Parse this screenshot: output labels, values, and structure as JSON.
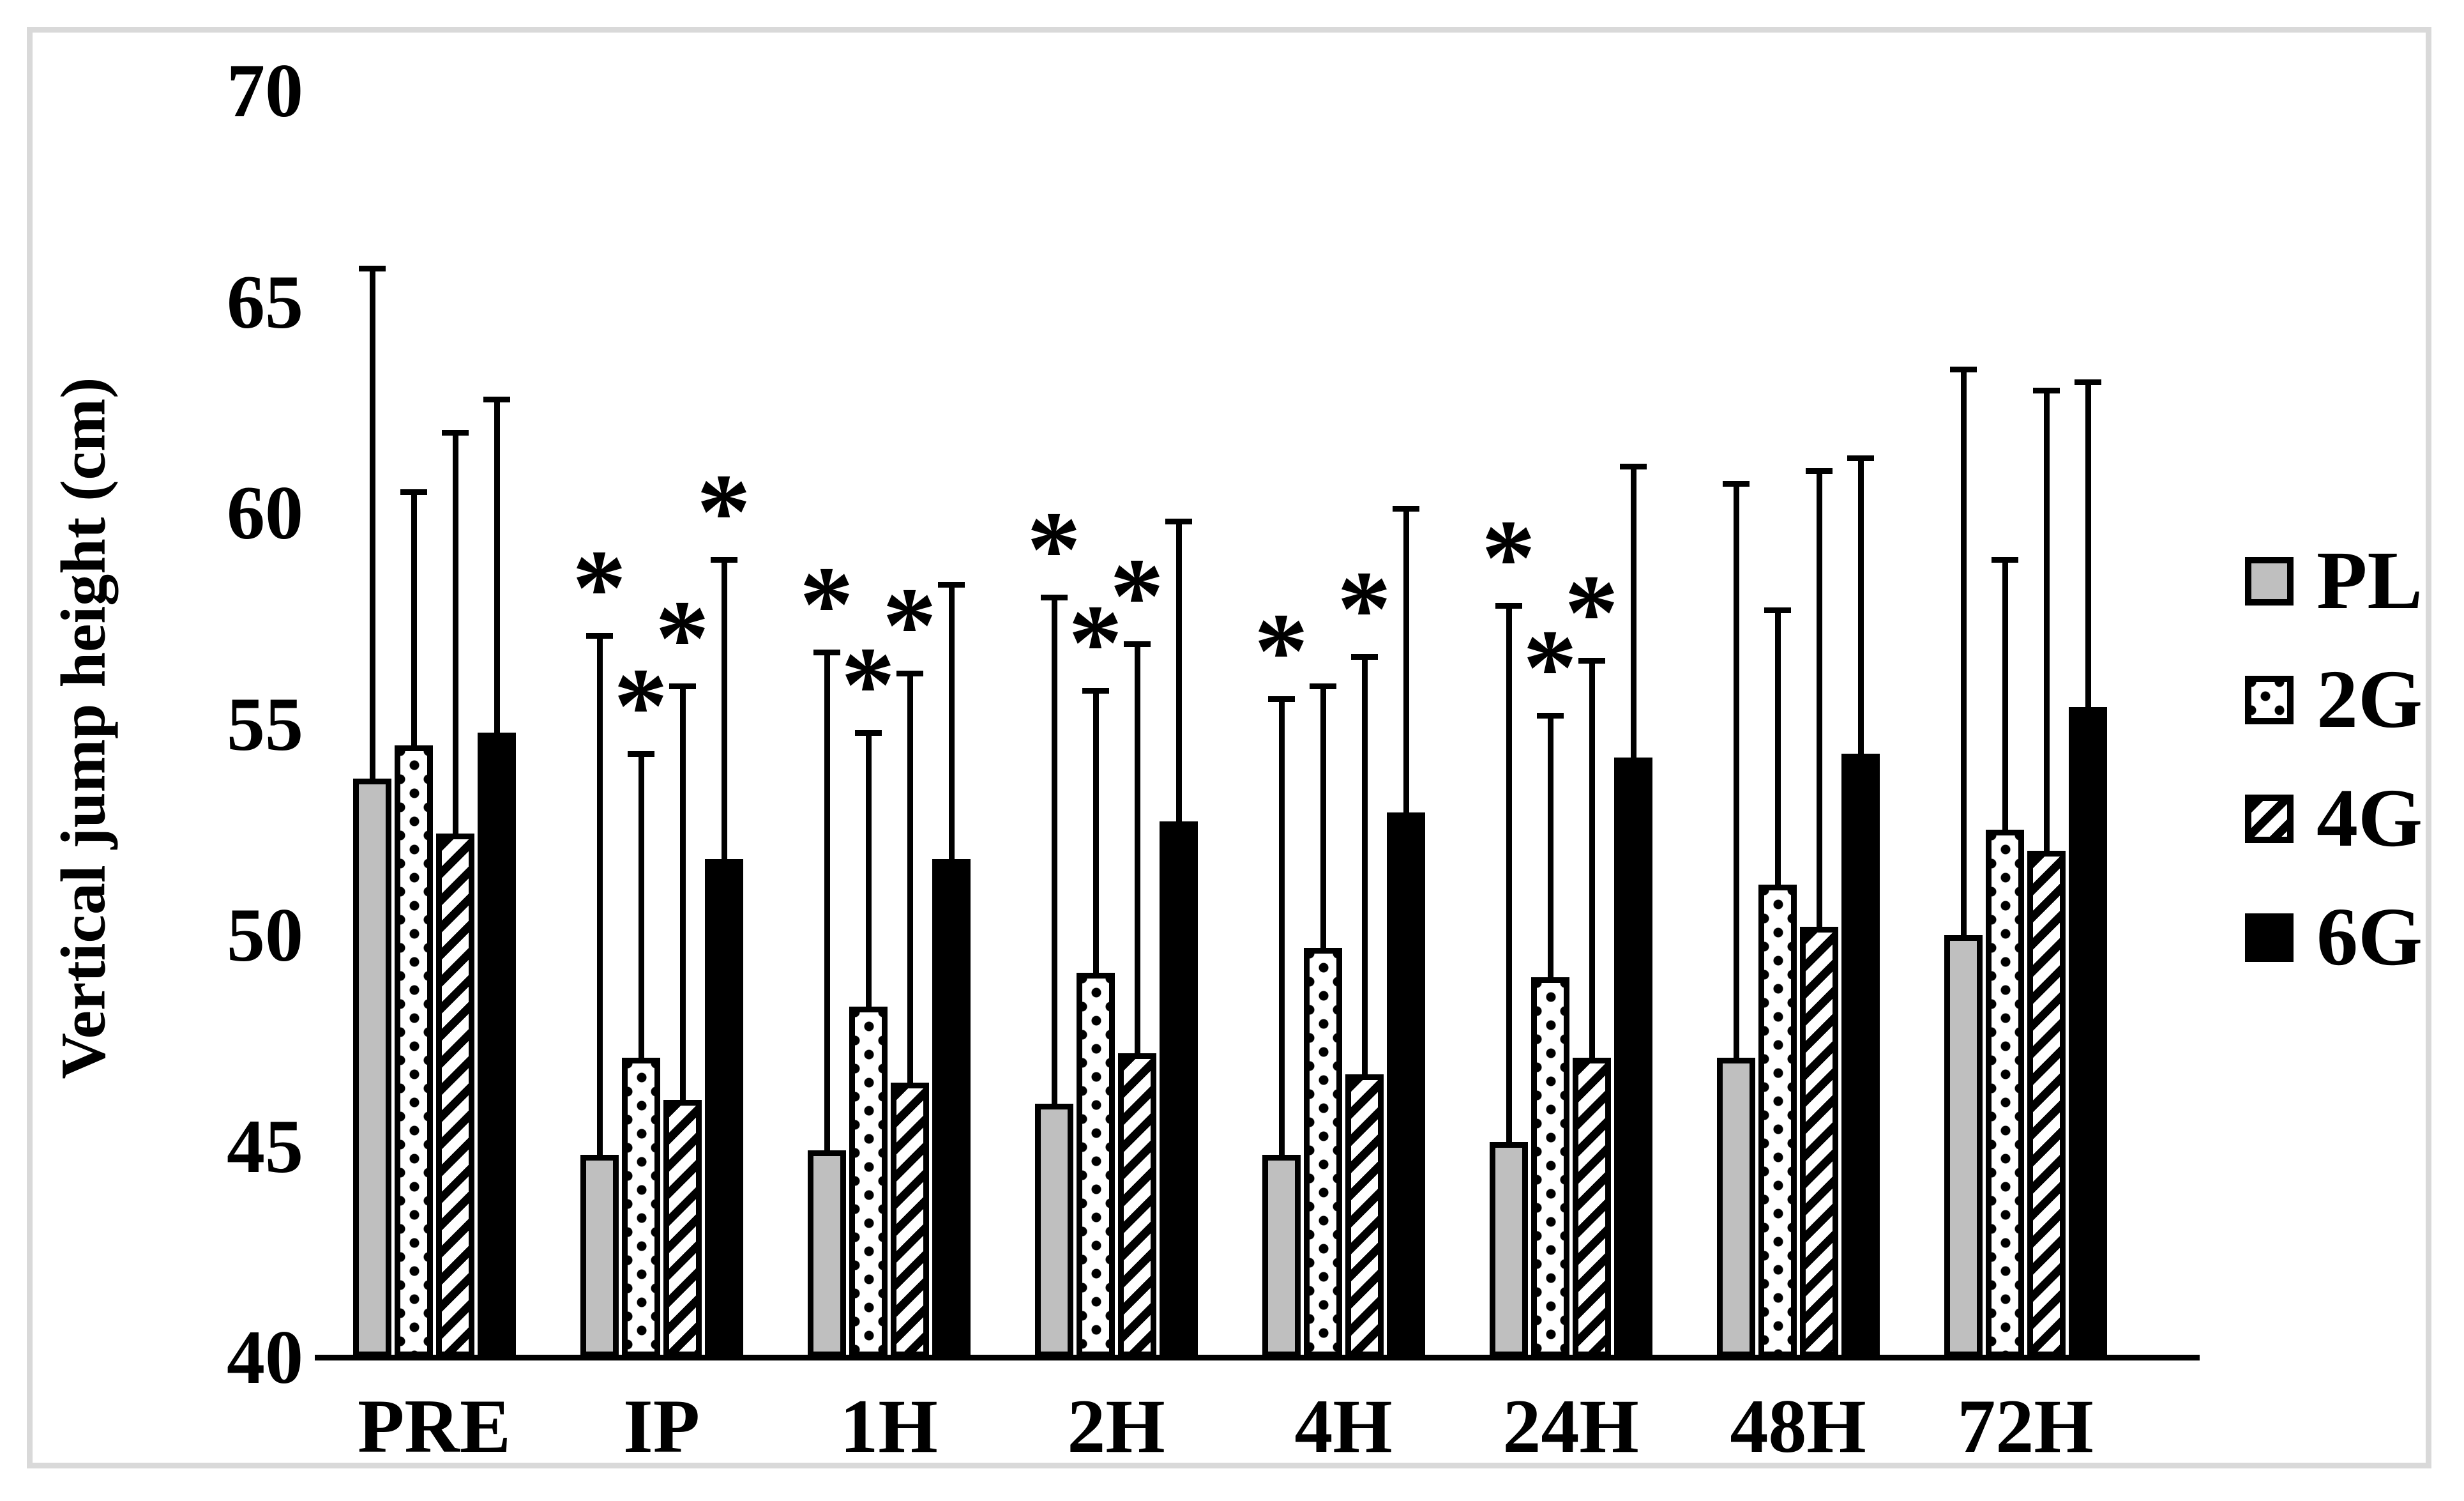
{
  "figure": {
    "background_color": "#ffffff",
    "border_color": "#d9d9d9",
    "bar_border_color": "#000000",
    "gray_fill": "#bfbfbf"
  },
  "chart_data": {
    "type": "bar",
    "title": "",
    "xlabel": "",
    "ylabel": "Vertical jump height (cm)",
    "ylim": [
      40,
      70
    ],
    "yticks": [
      40,
      45,
      50,
      55,
      60,
      65,
      70
    ],
    "grid": "off",
    "legend_position": "right",
    "sig_marker": "*",
    "error_bars": "upper only, cap style",
    "categories": [
      "PRE",
      "IP",
      "1H",
      "2H",
      "4H",
      "24H",
      "48H",
      "72H"
    ],
    "series": [
      {
        "name": "PL",
        "pattern": "solid-gray",
        "fill": "#bfbfbf",
        "values": [
          53.7,
          44.8,
          44.9,
          46.0,
          44.8,
          45.1,
          47.1,
          50.0
        ],
        "error_up": [
          12.1,
          12.3,
          11.8,
          12.0,
          10.8,
          12.7,
          13.6,
          13.4
        ],
        "significant": [
          false,
          true,
          true,
          true,
          true,
          true,
          false,
          false
        ]
      },
      {
        "name": "2G",
        "pattern": "dotted",
        "fill": "#ffffff",
        "values": [
          54.5,
          47.1,
          48.3,
          49.1,
          49.7,
          49.0,
          51.2,
          52.5
        ],
        "error_up": [
          6.0,
          7.2,
          6.5,
          6.7,
          6.2,
          6.2,
          6.5,
          6.4
        ],
        "significant": [
          false,
          true,
          true,
          true,
          false,
          true,
          false,
          false
        ]
      },
      {
        "name": "4G",
        "pattern": "diagonal-stripes",
        "fill": "#ffffff",
        "values": [
          52.4,
          46.1,
          46.5,
          47.2,
          46.7,
          47.1,
          50.2,
          52.0
        ],
        "error_up": [
          9.5,
          9.8,
          9.7,
          9.7,
          9.9,
          9.4,
          10.8,
          10.9
        ],
        "significant": [
          false,
          true,
          true,
          true,
          true,
          true,
          false,
          false
        ]
      },
      {
        "name": "6G",
        "pattern": "solid-black",
        "fill": "#000000",
        "values": [
          54.8,
          51.8,
          51.8,
          52.7,
          52.9,
          54.2,
          54.3,
          55.4
        ],
        "error_up": [
          7.9,
          7.1,
          6.5,
          7.1,
          7.2,
          6.9,
          7.0,
          7.7
        ],
        "significant": [
          false,
          true,
          false,
          false,
          false,
          false,
          false,
          false
        ]
      }
    ],
    "legend": [
      "PL",
      "2G",
      "4G",
      "6G"
    ]
  }
}
